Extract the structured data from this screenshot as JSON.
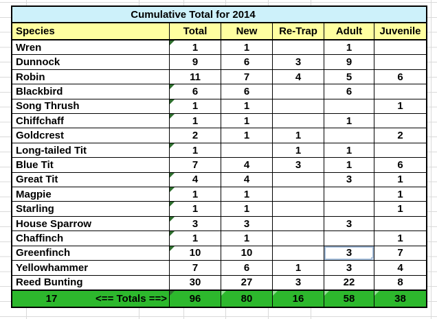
{
  "table": {
    "title": "Cumulative Total for 2014",
    "columns": [
      "Species",
      "Total",
      "New",
      "Re-Trap",
      "Adult",
      "Juvenile"
    ],
    "rows": [
      {
        "species": "Wren",
        "values": [
          "1",
          "1",
          "",
          "1",
          ""
        ],
        "flag": true
      },
      {
        "species": "Dunnock",
        "values": [
          "9",
          "6",
          "3",
          "9",
          ""
        ],
        "flag": false
      },
      {
        "species": "Robin",
        "values": [
          "11",
          "7",
          "4",
          "5",
          "6"
        ],
        "flag": false
      },
      {
        "species": "Blackbird",
        "values": [
          "6",
          "6",
          "",
          "6",
          ""
        ],
        "flag": true
      },
      {
        "species": "Song Thrush",
        "values": [
          "1",
          "1",
          "",
          "",
          "1"
        ],
        "flag": true
      },
      {
        "species": "Chiffchaff",
        "values": [
          "1",
          "1",
          "",
          "1",
          ""
        ],
        "flag": true
      },
      {
        "species": "Goldcrest",
        "values": [
          "2",
          "1",
          "1",
          "",
          "2"
        ],
        "flag": false
      },
      {
        "species": "Long-tailed Tit",
        "values": [
          "1",
          "",
          "1",
          "1",
          ""
        ],
        "flag": true
      },
      {
        "species": "Blue Tit",
        "values": [
          "7",
          "4",
          "3",
          "1",
          "6"
        ],
        "flag": false
      },
      {
        "species": "Great Tit",
        "values": [
          "4",
          "4",
          "",
          "3",
          "1"
        ],
        "flag": true
      },
      {
        "species": "Magpie",
        "values": [
          "1",
          "1",
          "",
          "",
          "1"
        ],
        "flag": true
      },
      {
        "species": "Starling",
        "values": [
          "1",
          "1",
          "",
          "",
          "1"
        ],
        "flag": true
      },
      {
        "species": "House Sparrow",
        "values": [
          "3",
          "3",
          "",
          "3",
          ""
        ],
        "flag": true
      },
      {
        "species": "Chaffinch",
        "values": [
          "1",
          "1",
          "",
          "",
          "1"
        ],
        "flag": true
      },
      {
        "species": "Greenfinch",
        "values": [
          "10",
          "10",
          "",
          "3",
          "7"
        ],
        "flag": true
      },
      {
        "species": "Yellowhammer",
        "values": [
          "7",
          "6",
          "1",
          "3",
          "4"
        ],
        "flag": false
      },
      {
        "species": "Reed Bunting",
        "values": [
          "30",
          "27",
          "3",
          "22",
          "8"
        ],
        "flag": false
      }
    ],
    "totals": {
      "count": "17",
      "label": "<== Totals ==>",
      "values": [
        "96",
        "80",
        "16",
        "58",
        "38"
      ],
      "flags": [
        "dark",
        "light",
        "light",
        "light",
        "light"
      ]
    },
    "selected_cell": {
      "row": "Greenfinch",
      "column": "Adult"
    }
  },
  "colors": {
    "title_bg": "#cdf1fa",
    "header_bg": "#ffffa0",
    "totals_bg": "#2db82d",
    "grid_line": "#d9d9d9",
    "border": "#000000",
    "flag_dark": "#2e6f2e",
    "flag_light": "#8fe08f",
    "selection": "#a3bcd9",
    "selection_handle": "#c3d5ea"
  }
}
